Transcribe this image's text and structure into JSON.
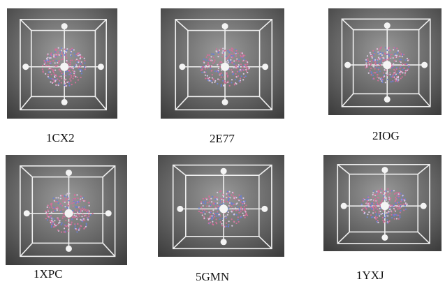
{
  "panels": [
    {
      "label": "1CX2"
    },
    {
      "label": "2E77"
    },
    {
      "label": "2IOG"
    },
    {
      "label": "1XPC"
    },
    {
      "label": "5GMN"
    },
    {
      "label": "1YXJ"
    }
  ]
}
